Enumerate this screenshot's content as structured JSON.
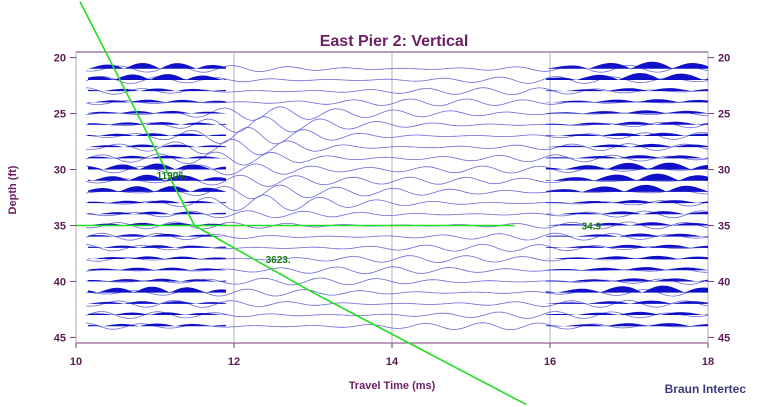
{
  "chart_data": {
    "type": "line",
    "title": "East Pier 2: Vertical",
    "xlabel": "Travel Time (ms)",
    "ylabel": "Depth (ft)",
    "xlim": [
      10,
      18
    ],
    "ylim": [
      45.5,
      19.5
    ],
    "x_ticks": [
      "10",
      "12",
      "14",
      "16",
      "18"
    ],
    "y_ticks": [
      "20",
      "25",
      "30",
      "35",
      "40",
      "45"
    ],
    "grid": "vertical",
    "trace_depths": [
      21,
      22,
      23,
      24,
      25,
      26,
      27,
      28,
      29,
      30,
      31,
      32,
      33,
      34,
      35,
      36,
      37,
      38,
      39,
      40,
      41,
      42,
      43,
      44
    ],
    "trace_color": "#1010c8",
    "series": [
      {
        "color": "#22dd22",
        "points": [
          [
            10.05,
            15
          ],
          [
            11.1,
            29.5
          ],
          [
            11.5,
            35.0
          ],
          [
            13.0,
            41.0
          ],
          [
            15.7,
            51.0
          ]
        ]
      },
      {
        "color": "#22dd22",
        "points": [
          [
            10.0,
            35.0
          ],
          [
            15.55,
            35.0
          ]
        ]
      }
    ],
    "annotations": [
      {
        "text": "11906.",
        "x": 11.02,
        "y": 30.5
      },
      {
        "text": "3623.",
        "x": 12.4,
        "y": 38.0
      },
      {
        "text": "34.9",
        "x": 16.4,
        "y": 35.0
      }
    ],
    "credit": "Braun Intertec"
  }
}
